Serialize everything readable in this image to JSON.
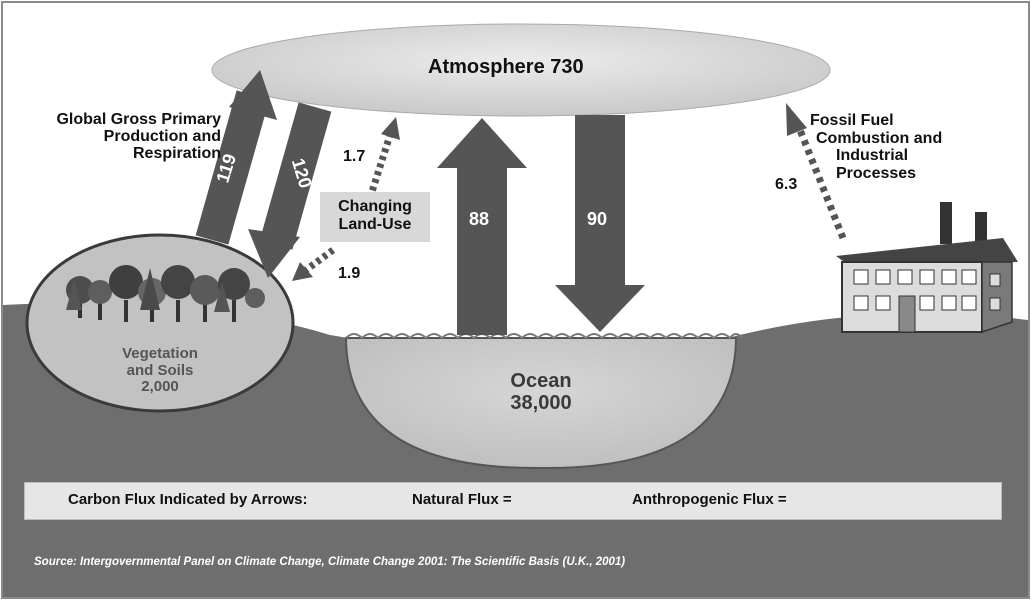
{
  "atmosphere": {
    "label": "Atmosphere 730"
  },
  "gpp": {
    "label_lines": [
      "Global Gross Primary",
      "Production and",
      "Respiration"
    ]
  },
  "flux_veg_to_atm": {
    "value": "119"
  },
  "flux_atm_to_veg": {
    "value": "120"
  },
  "land_use": {
    "label_lines": [
      "Changing",
      "Land-Use"
    ],
    "flux_up": "1.7",
    "flux_down": "1.9"
  },
  "ocean_up": {
    "value": "88"
  },
  "ocean_down": {
    "value": "90"
  },
  "ocean": {
    "label_lines": [
      "Ocean",
      "38,000"
    ]
  },
  "vegetation": {
    "label_lines": [
      "Vegetation",
      "and Soils",
      "2,000"
    ]
  },
  "fossil": {
    "label_lines": [
      "Fossil Fuel",
      "Combustion and",
      "Industrial",
      "Processes"
    ],
    "value": "6.3"
  },
  "legend": {
    "title": "Carbon Flux Indicated by Arrows:",
    "natural": "Natural Flux =",
    "anthropogenic": "Anthropogenic Flux ="
  },
  "source": {
    "prefix": "Source: Intergovernmental Panel on Climate Change, ",
    "title": "Climate Change 2001: The Scientific Basis",
    "suffix": " (U.K., 2001)"
  },
  "colors": {
    "arrow": "#555555",
    "ground": "#6e6e6e",
    "ocean": "#c8c8c8",
    "atmosphere": "#dcdcdc",
    "vegetation": "#c2c2c2"
  }
}
